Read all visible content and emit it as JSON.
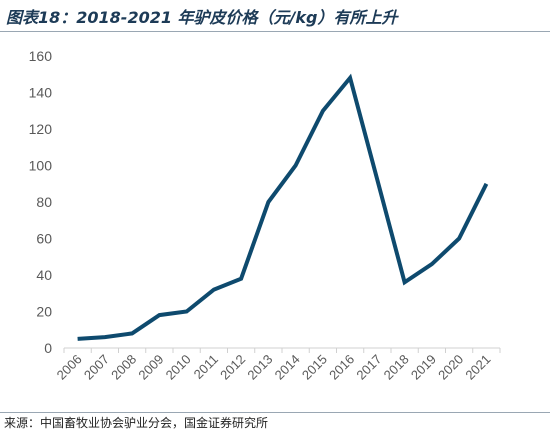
{
  "header": {
    "title": "图表18：2018-2021 年驴皮价格（元/kg）有所上升"
  },
  "footer": {
    "source": "来源：中国畜牧业协会驴业分会，国金证券研究所"
  },
  "colors": {
    "line": "#0e4a6e",
    "axis": "#d0d0d0",
    "tick_text": "#595959",
    "title": "#1d3b57"
  },
  "chart_data": {
    "type": "line",
    "title": "图表18：2018-2021 年驴皮价格（元/kg）有所上升",
    "xlabel": "",
    "ylabel": "",
    "ylim": [
      0,
      160
    ],
    "yticks": [
      0,
      20,
      40,
      60,
      80,
      100,
      120,
      140,
      160
    ],
    "grid": false,
    "legend": "none",
    "categories": [
      "2006",
      "2007",
      "2008",
      "2009",
      "2010",
      "2011",
      "2012",
      "2013",
      "2014",
      "2015",
      "2016",
      "2017",
      "2018",
      "2019",
      "2020",
      "2021"
    ],
    "series": [
      {
        "values": [
          5,
          6,
          8,
          18,
          20,
          32,
          38,
          80,
          100,
          130,
          148,
          92,
          36,
          46,
          60,
          90
        ]
      }
    ]
  }
}
